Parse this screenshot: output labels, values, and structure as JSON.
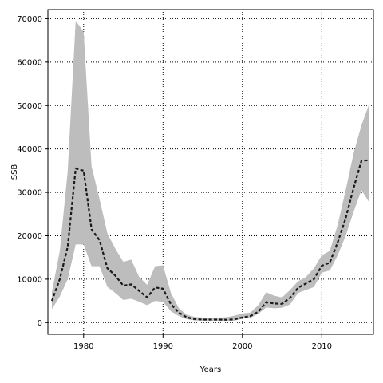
{
  "chart_data": {
    "type": "line",
    "title": "",
    "xlabel": "Years",
    "ylabel": "SSB",
    "xlim": [
      1975.5,
      2016.5
    ],
    "ylim": [
      -2700,
      72100
    ],
    "x_ticks": [
      1980,
      1990,
      2000,
      2010
    ],
    "y_ticks": [
      0,
      10000,
      20000,
      30000,
      40000,
      50000,
      60000,
      70000
    ],
    "grid": true,
    "grid_style": "dotted",
    "colors": {
      "band": "#bdbdbd",
      "line": "#1a1a1a",
      "grid": "#000000"
    },
    "x": [
      1976,
      1977,
      1978,
      1979,
      1980,
      1981,
      1982,
      1983,
      1984,
      1985,
      1986,
      1987,
      1988,
      1989,
      1990,
      1991,
      1992,
      1993,
      1994,
      1995,
      1996,
      1997,
      1998,
      1999,
      2000,
      2001,
      2002,
      2003,
      2004,
      2005,
      2006,
      2007,
      2008,
      2009,
      2010,
      2011,
      2012,
      2013,
      2014,
      2015,
      2016
    ],
    "series": [
      {
        "style": "dashed",
        "values": [
          5000,
          10000,
          17500,
          35500,
          35000,
          21500,
          19000,
          12500,
          10800,
          8500,
          8800,
          7300,
          5800,
          8100,
          7800,
          4200,
          2300,
          1200,
          800,
          700,
          700,
          700,
          650,
          750,
          1200,
          1500,
          2500,
          4700,
          4400,
          4300,
          5700,
          8000,
          9000,
          10000,
          13100,
          13800,
          18500,
          24000,
          31000,
          37300,
          37400
        ]
      }
    ],
    "band": {
      "upper": [
        7000,
        16500,
        35000,
        69500,
        67000,
        36000,
        28500,
        20500,
        17000,
        14000,
        14500,
        10500,
        8700,
        13000,
        13200,
        6800,
        3300,
        1800,
        1300,
        1150,
        1150,
        1150,
        1250,
        1600,
        2100,
        2300,
        4000,
        7000,
        6200,
        5800,
        7500,
        9500,
        10500,
        12500,
        15500,
        16500,
        22500,
        30500,
        39000,
        45500,
        50500
      ],
      "lower": [
        3100,
        6000,
        10000,
        18000,
        18000,
        13000,
        13000,
        8200,
        6800,
        5200,
        5500,
        4800,
        4000,
        5000,
        4800,
        2600,
        1500,
        800,
        500,
        450,
        450,
        420,
        400,
        450,
        900,
        1100,
        2000,
        3500,
        3300,
        3400,
        4200,
        6800,
        7500,
        8200,
        11500,
        12000,
        15500,
        20000,
        25500,
        30500,
        27600
      ]
    }
  }
}
